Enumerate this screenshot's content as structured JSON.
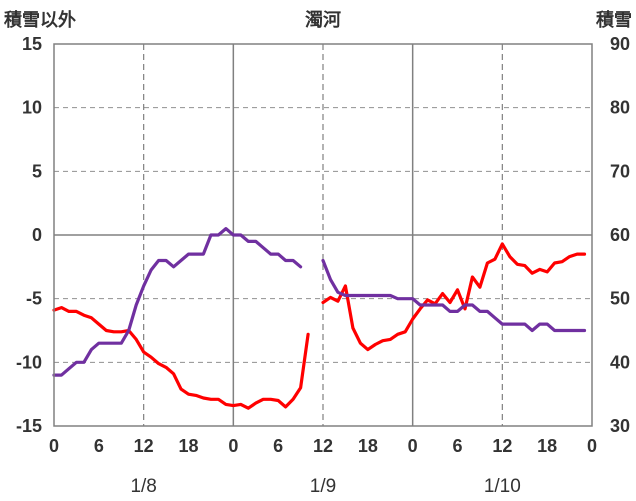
{
  "chart_data": {
    "type": "line",
    "title": "濁河",
    "left_axis_label": "積雪以外",
    "right_axis_label": "積雪",
    "left_ylim": [
      -15,
      15
    ],
    "left_yticks": [
      "15",
      "10",
      "5",
      "0",
      "-5",
      "-10",
      "-15"
    ],
    "right_ylim": [
      30,
      90
    ],
    "right_yticks": [
      "90",
      "80",
      "70",
      "60",
      "50",
      "40",
      "30"
    ],
    "xlim": [
      0,
      72
    ],
    "xticks": [
      "0",
      "6",
      "12",
      "18",
      "0",
      "6",
      "12",
      "18",
      "0",
      "6",
      "12",
      "18",
      "0"
    ],
    "day_labels": [
      {
        "text": "1/8",
        "x": 12
      },
      {
        "text": "1/9",
        "x": 36
      },
      {
        "text": "1/10",
        "x": 60
      }
    ],
    "solid_vlines_x": [
      24,
      48
    ],
    "dashed_vlines_x": [
      12,
      36,
      60
    ],
    "series": [
      {
        "axis": "left",
        "color": "#ff0000",
        "segments": [
          [
            [
              0,
              -5.9
            ],
            [
              1,
              -5.7
            ],
            [
              2,
              -6.0
            ],
            [
              3,
              -6.0
            ],
            [
              4,
              -6.3
            ],
            [
              5,
              -6.5
            ],
            [
              6,
              -7.0
            ],
            [
              7,
              -7.5
            ],
            [
              8,
              -7.6
            ],
            [
              9,
              -7.6
            ],
            [
              10,
              -7.5
            ],
            [
              11,
              -8.2
            ],
            [
              12,
              -9.2
            ],
            [
              13,
              -9.6
            ],
            [
              14,
              -10.1
            ],
            [
              15,
              -10.4
            ],
            [
              16,
              -10.9
            ],
            [
              17,
              -12.1
            ],
            [
              18,
              -12.5
            ],
            [
              19,
              -12.6
            ],
            [
              20,
              -12.8
            ],
            [
              21,
              -12.9
            ],
            [
              22,
              -12.9
            ],
            [
              23,
              -13.3
            ],
            [
              24,
              -13.4
            ],
            [
              25,
              -13.3
            ],
            [
              26,
              -13.6
            ],
            [
              27,
              -13.2
            ],
            [
              28,
              -12.9
            ],
            [
              29,
              -12.9
            ],
            [
              30,
              -13.0
            ],
            [
              31,
              -13.5
            ],
            [
              32,
              -12.9
            ],
            [
              33,
              -12.0
            ],
            [
              34,
              -7.8
            ]
          ],
          [
            [
              36,
              -5.3
            ],
            [
              37,
              -4.9
            ],
            [
              38,
              -5.2
            ],
            [
              39,
              -4.0
            ],
            [
              40,
              -7.3
            ],
            [
              41,
              -8.5
            ],
            [
              42,
              -9.0
            ],
            [
              43,
              -8.6
            ],
            [
              44,
              -8.3
            ],
            [
              45,
              -8.2
            ],
            [
              46,
              -7.8
            ],
            [
              47,
              -7.6
            ],
            [
              48,
              -6.6
            ],
            [
              49,
              -5.8
            ],
            [
              50,
              -5.1
            ],
            [
              51,
              -5.4
            ],
            [
              52,
              -4.6
            ],
            [
              53,
              -5.3
            ],
            [
              54,
              -4.3
            ],
            [
              55,
              -5.8
            ],
            [
              56,
              -3.3
            ],
            [
              57,
              -4.1
            ],
            [
              58,
              -2.2
            ],
            [
              59,
              -1.9
            ],
            [
              60,
              -0.7
            ],
            [
              61,
              -1.7
            ],
            [
              62,
              -2.3
            ],
            [
              63,
              -2.4
            ],
            [
              64,
              -3.0
            ],
            [
              65,
              -2.7
            ],
            [
              66,
              -2.9
            ],
            [
              67,
              -2.2
            ],
            [
              68,
              -2.1
            ],
            [
              69,
              -1.7
            ],
            [
              70,
              -1.5
            ],
            [
              71,
              -1.5
            ]
          ]
        ]
      },
      {
        "axis": "right",
        "color": "#7030a0",
        "segments": [
          [
            [
              0,
              38.0
            ],
            [
              1,
              38.0
            ],
            [
              2,
              39.0
            ],
            [
              3,
              40.0
            ],
            [
              4,
              40.0
            ],
            [
              5,
              42.0
            ],
            [
              6,
              43.0
            ],
            [
              7,
              43.0
            ],
            [
              8,
              43.0
            ],
            [
              9,
              43.0
            ],
            [
              10,
              45.0
            ],
            [
              11,
              49.0
            ],
            [
              12,
              52.0
            ],
            [
              13,
              54.5
            ],
            [
              14,
              56.0
            ],
            [
              15,
              56.0
            ],
            [
              16,
              55.0
            ],
            [
              17,
              56.0
            ],
            [
              18,
              57.0
            ],
            [
              19,
              57.0
            ],
            [
              20,
              57.0
            ],
            [
              21,
              60.0
            ],
            [
              22,
              60.0
            ],
            [
              23,
              61.0
            ],
            [
              24,
              60.0
            ],
            [
              25,
              60.0
            ],
            [
              26,
              59.0
            ],
            [
              27,
              59.0
            ],
            [
              28,
              58.0
            ],
            [
              29,
              57.0
            ],
            [
              30,
              57.0
            ],
            [
              31,
              56.0
            ],
            [
              32,
              56.0
            ],
            [
              33,
              55.0
            ]
          ],
          [
            [
              36,
              56.0
            ],
            [
              37,
              53.0
            ],
            [
              38,
              51.0
            ],
            [
              39,
              50.5
            ],
            [
              40,
              50.5
            ],
            [
              41,
              50.5
            ],
            [
              42,
              50.5
            ],
            [
              43,
              50.5
            ],
            [
              44,
              50.5
            ],
            [
              45,
              50.5
            ],
            [
              46,
              50.0
            ],
            [
              47,
              50.0
            ],
            [
              48,
              50.0
            ],
            [
              49,
              49.0
            ],
            [
              50,
              49.0
            ],
            [
              51,
              49.0
            ],
            [
              52,
              49.0
            ],
            [
              53,
              48.0
            ],
            [
              54,
              48.0
            ],
            [
              55,
              49.0
            ],
            [
              56,
              49.0
            ],
            [
              57,
              48.0
            ],
            [
              58,
              48.0
            ],
            [
              59,
              47.0
            ],
            [
              60,
              46.0
            ],
            [
              61,
              46.0
            ],
            [
              62,
              46.0
            ],
            [
              63,
              46.0
            ],
            [
              64,
              45.0
            ],
            [
              65,
              46.0
            ],
            [
              66,
              46.0
            ],
            [
              67,
              45.0
            ],
            [
              68,
              45.0
            ],
            [
              69,
              45.0
            ],
            [
              70,
              45.0
            ],
            [
              71,
              45.0
            ]
          ]
        ]
      }
    ]
  }
}
